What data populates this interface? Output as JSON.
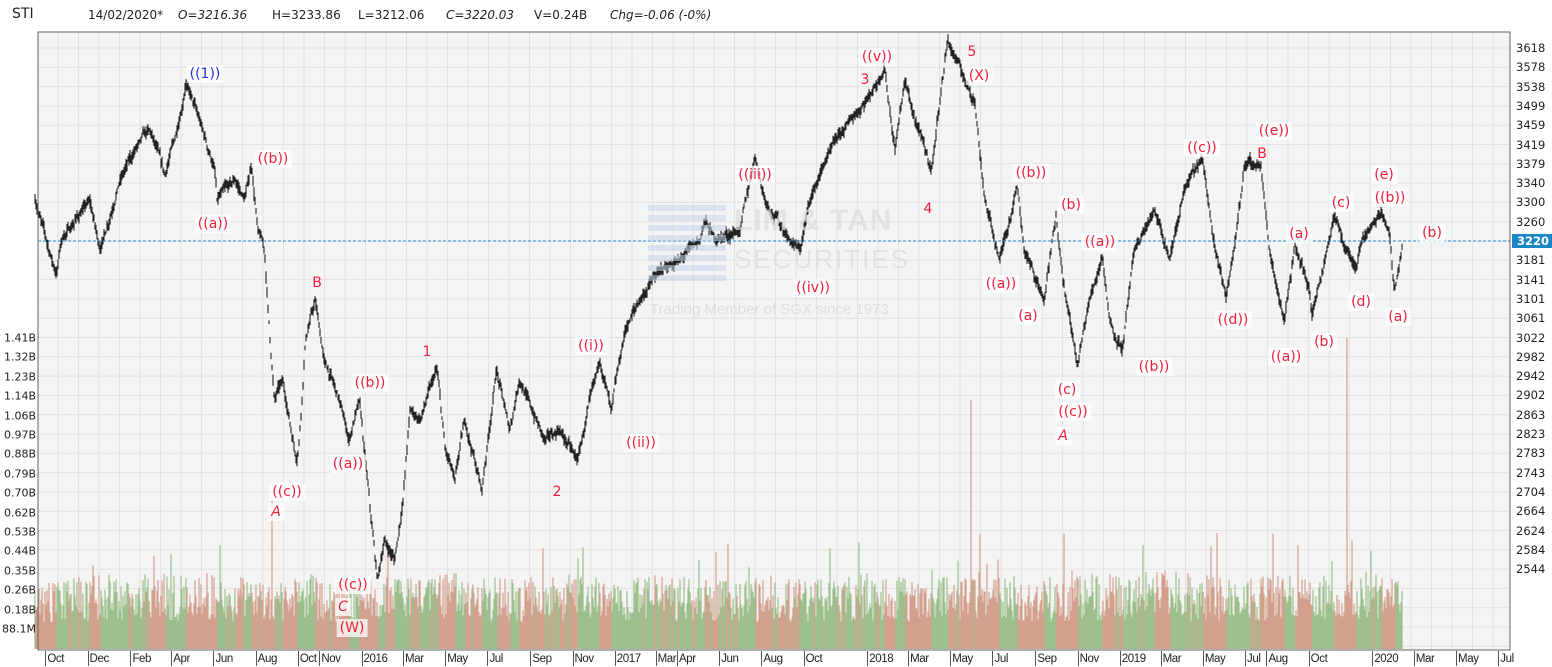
{
  "header": {
    "symbol": "STI",
    "date": "14/02/2020*",
    "open": "O=3216.36",
    "high": "H=3233.86",
    "low": "L=3212.06",
    "close": "C=3220.03",
    "volume": "V=0.24B",
    "change": "Chg=-0.06 (-0%)"
  },
  "watermark": {
    "line1": "LIM & TAN",
    "line2": "SECURITIES",
    "line3": "Trading Member of SGX since 1973"
  },
  "colors": {
    "price_bar": "#222222",
    "volume_up": "#9dbf8c",
    "volume_down": "#d3a08e",
    "wave_label": "#f0203c",
    "wave_label_primary": "#2233e0",
    "current_price_line": "#1a86c8",
    "grid": "#e2e2e2",
    "plot_bg": "#f4f4f4"
  },
  "chart_data": {
    "type": "ohlc-bar",
    "title": "STI",
    "current_price": 3220,
    "ylim": [
      2510,
      3650
    ],
    "y_ticks": [
      3618,
      3578,
      3538,
      3499,
      3459,
      3419,
      3379,
      3340,
      3300,
      3260,
      3220,
      3181,
      3141,
      3101,
      3061,
      3022,
      2982,
      2942,
      2902,
      2863,
      2823,
      2783,
      2743,
      2704,
      2664,
      2624,
      2584,
      2544
    ],
    "volume_ticks": [
      "1.41B",
      "1.32B",
      "1.23B",
      "1.14B",
      "1.06B",
      "0.97B",
      "0.88B",
      "0.79B",
      "0.70B",
      "0.62B",
      "0.53B",
      "0.44B",
      "0.35B",
      "0.26B",
      "0.18B",
      "88.1M"
    ],
    "x_ticks": [
      {
        "label": "Oct",
        "date": "2014-10-01"
      },
      {
        "label": "Dec",
        "date": "2014-12-01"
      },
      {
        "label": "Feb",
        "date": "2015-02-01"
      },
      {
        "label": "Apr",
        "date": "2015-04-01"
      },
      {
        "label": "Jun",
        "date": "2015-06-01"
      },
      {
        "label": "Aug",
        "date": "2015-08-01"
      },
      {
        "label": "Oct",
        "date": "2015-10-01"
      },
      {
        "label": "Nov",
        "date": "2015-11-01"
      },
      {
        "label": "2016",
        "date": "2016-01-01"
      },
      {
        "label": "Mar",
        "date": "2016-03-01"
      },
      {
        "label": "May",
        "date": "2016-05-01"
      },
      {
        "label": "Jul",
        "date": "2016-07-01"
      },
      {
        "label": "Sep",
        "date": "2016-09-01"
      },
      {
        "label": "Nov",
        "date": "2016-11-01"
      },
      {
        "label": "2017",
        "date": "2017-01-01"
      },
      {
        "label": "Mar",
        "date": "2017-03-01"
      },
      {
        "label": "Apr",
        "date": "2017-04-01"
      },
      {
        "label": "Jun",
        "date": "2017-06-01"
      },
      {
        "label": "Aug",
        "date": "2017-08-01"
      },
      {
        "label": "Oct",
        "date": "2017-10-01"
      },
      {
        "label": "2018",
        "date": "2018-01-01"
      },
      {
        "label": "Mar",
        "date": "2018-03-01"
      },
      {
        "label": "May",
        "date": "2018-05-01"
      },
      {
        "label": "Jul",
        "date": "2018-07-01"
      },
      {
        "label": "Sep",
        "date": "2018-09-01"
      },
      {
        "label": "Nov",
        "date": "2018-11-01"
      },
      {
        "label": "2019",
        "date": "2019-01-01"
      },
      {
        "label": "Mar",
        "date": "2019-03-01"
      },
      {
        "label": "May",
        "date": "2019-05-01"
      },
      {
        "label": "Jul",
        "date": "2019-07-01"
      },
      {
        "label": "Aug",
        "date": "2019-08-01"
      },
      {
        "label": "Oct",
        "date": "2019-10-01"
      },
      {
        "label": "2020",
        "date": "2020-01-01"
      },
      {
        "label": "Mar",
        "date": "2020-03-01"
      },
      {
        "label": "May",
        "date": "2020-05-01"
      },
      {
        "label": "Jul",
        "date": "2020-07-01"
      }
    ],
    "price_pivots": [
      [
        "2014-09-15",
        3309
      ],
      [
        "2014-10-17",
        3149
      ],
      [
        "2014-10-24",
        3222
      ],
      [
        "2014-12-04",
        3305
      ],
      [
        "2014-12-19",
        3201
      ],
      [
        "2015-01-17",
        3346
      ],
      [
        "2015-02-15",
        3428
      ],
      [
        "2015-03-01",
        3449
      ],
      [
        "2015-03-23",
        3356
      ],
      [
        "2015-04-13",
        3469
      ],
      [
        "2015-04-22",
        3546
      ],
      [
        "2015-05-12",
        3469
      ],
      [
        "2015-06-03",
        3366
      ],
      [
        "2015-06-06",
        3305
      ],
      [
        "2015-07-02",
        3346
      ],
      [
        "2015-07-16",
        3305
      ],
      [
        "2015-07-26",
        3377
      ],
      [
        "2015-08-04",
        3243
      ],
      [
        "2015-08-14",
        3201
      ],
      [
        "2015-08-18",
        3098
      ],
      [
        "2015-08-28",
        2892
      ],
      [
        "2015-09-09",
        2933
      ],
      [
        "2015-09-29",
        2768
      ],
      [
        "2015-10-03",
        2810
      ],
      [
        "2015-10-12",
        3016
      ],
      [
        "2015-10-26",
        3098
      ],
      [
        "2015-11-08",
        2975
      ],
      [
        "2015-11-30",
        2892
      ],
      [
        "2015-12-14",
        2810
      ],
      [
        "2015-12-29",
        2892
      ],
      [
        "2016-01-05",
        2789
      ],
      [
        "2016-01-15",
        2645
      ],
      [
        "2016-01-24",
        2521
      ],
      [
        "2016-02-03",
        2603
      ],
      [
        "2016-02-18",
        2562
      ],
      [
        "2016-03-01",
        2686
      ],
      [
        "2016-03-11",
        2872
      ],
      [
        "2016-03-26",
        2851
      ],
      [
        "2016-04-19",
        2958
      ],
      [
        "2016-05-01",
        2789
      ],
      [
        "2016-05-15",
        2727
      ],
      [
        "2016-05-29",
        2851
      ],
      [
        "2016-06-23",
        2707
      ],
      [
        "2016-07-14",
        2954
      ],
      [
        "2016-08-02",
        2830
      ],
      [
        "2016-08-16",
        2933
      ],
      [
        "2016-09-22",
        2810
      ],
      [
        "2016-10-13",
        2830
      ],
      [
        "2016-11-08",
        2768
      ],
      [
        "2016-12-10",
        2975
      ],
      [
        "2016-12-27",
        2872
      ],
      [
        "2017-01-16",
        3036
      ],
      [
        "2017-02-06",
        3098
      ],
      [
        "2017-03-07",
        3160
      ],
      [
        "2017-04-05",
        3181
      ],
      [
        "2017-05-04",
        3222
      ],
      [
        "2017-05-11",
        3263
      ],
      [
        "2017-05-26",
        3222
      ],
      [
        "2017-07-01",
        3243
      ],
      [
        "2017-07-23",
        3397
      ],
      [
        "2017-08-06",
        3305
      ],
      [
        "2017-09-11",
        3222
      ],
      [
        "2017-09-26",
        3201
      ],
      [
        "2017-10-10",
        3305
      ],
      [
        "2017-11-08",
        3408
      ],
      [
        "2017-12-07",
        3469
      ],
      [
        "2018-01-05",
        3521
      ],
      [
        "2018-01-26",
        3577
      ],
      [
        "2018-02-10",
        3408
      ],
      [
        "2018-02-24",
        3552
      ],
      [
        "2018-03-11",
        3469
      ],
      [
        "2018-04-04",
        3366
      ],
      [
        "2018-04-16",
        3511
      ],
      [
        "2018-04-27",
        3634
      ],
      [
        "2018-05-22",
        3552
      ],
      [
        "2018-06-05",
        3511
      ],
      [
        "2018-06-20",
        3305
      ],
      [
        "2018-07-11",
        3181
      ],
      [
        "2018-08-06",
        3335
      ],
      [
        "2018-08-16",
        3201
      ],
      [
        "2018-09-14",
        3098
      ],
      [
        "2018-10-01",
        3274
      ],
      [
        "2018-10-13",
        3119
      ],
      [
        "2018-11-01",
        2964
      ],
      [
        "2018-11-18",
        3098
      ],
      [
        "2018-12-07",
        3191
      ],
      [
        "2018-12-17",
        3057
      ],
      [
        "2019-01-05",
        2995
      ],
      [
        "2019-01-22",
        3201
      ],
      [
        "2019-02-20",
        3284
      ],
      [
        "2019-03-14",
        3181
      ],
      [
        "2019-04-04",
        3325
      ],
      [
        "2019-04-30",
        3391
      ],
      [
        "2019-05-17",
        3222
      ],
      [
        "2019-06-04",
        3102
      ],
      [
        "2019-06-17",
        3222
      ],
      [
        "2019-06-30",
        3377
      ],
      [
        "2019-07-24",
        3377
      ],
      [
        "2019-08-05",
        3201
      ],
      [
        "2019-08-27",
        3057
      ],
      [
        "2019-09-11",
        3212
      ],
      [
        "2019-10-02",
        3119
      ],
      [
        "2019-10-06",
        3067
      ],
      [
        "2019-11-07",
        3274
      ],
      [
        "2019-11-21",
        3212
      ],
      [
        "2019-12-09",
        3160
      ],
      [
        "2019-12-17",
        3222
      ],
      [
        "2020-01-14",
        3280
      ],
      [
        "2020-01-26",
        3232
      ],
      [
        "2020-02-02",
        3119
      ],
      [
        "2020-02-14",
        3220
      ]
    ],
    "volume_spikes": [
      [
        "2015-08-24",
        0.68
      ],
      [
        "2018-05-31",
        1.13
      ],
      [
        "2019-11-26",
        1.41
      ]
    ],
    "grid": true,
    "wave_labels": [
      {
        "text": "((1))",
        "color": "primary"
      },
      {
        "text": "((a))"
      },
      {
        "text": "((b))"
      },
      {
        "text": "B"
      },
      {
        "text": "((c))"
      },
      {
        "text": "A",
        "italic": true
      },
      {
        "text": "((b))"
      },
      {
        "text": "((a))"
      },
      {
        "text": "((c))"
      },
      {
        "text": "C",
        "italic": true
      },
      {
        "text": "(W)"
      },
      {
        "text": "1"
      },
      {
        "text": "2"
      },
      {
        "text": "((i))"
      },
      {
        "text": "((ii))"
      },
      {
        "text": "((iii))"
      },
      {
        "text": "((iv))"
      },
      {
        "text": "((v))"
      },
      {
        "text": "3"
      },
      {
        "text": "4"
      },
      {
        "text": "5"
      },
      {
        "text": "(X)"
      },
      {
        "text": "((a))"
      },
      {
        "text": "((b))"
      },
      {
        "text": "(a)"
      },
      {
        "text": "(b)"
      },
      {
        "text": "(c)"
      },
      {
        "text": "((c))"
      },
      {
        "text": "A",
        "italic": true
      },
      {
        "text": "((a))"
      },
      {
        "text": "((b))"
      },
      {
        "text": "((c))"
      },
      {
        "text": "((d))"
      },
      {
        "text": "((e))"
      },
      {
        "text": "B"
      },
      {
        "text": "(a)"
      },
      {
        "text": "((a))"
      },
      {
        "text": "(b)"
      },
      {
        "text": "(c)"
      },
      {
        "text": "(d)"
      },
      {
        "text": "(e)"
      },
      {
        "text": "((b))"
      },
      {
        "text": "(a)"
      },
      {
        "text": "(b)"
      }
    ]
  }
}
